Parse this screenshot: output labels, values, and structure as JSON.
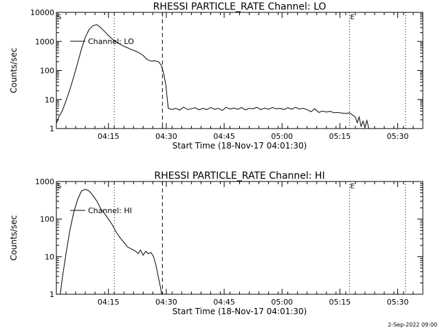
{
  "footer": {
    "timestamp": "2-Sep-2022 09:00"
  },
  "chart_data": [
    {
      "type": "line",
      "title": "RHESSI PARTICLE_RATE Channel: LO",
      "xlabel": "Start Time (18-Nov-17 04:01:30)",
      "ylabel": "Counts/sec",
      "yscale": "log",
      "xlim_min": [
        0,
        95
      ],
      "ylim": [
        1,
        10000
      ],
      "x_tick_min": [
        13.5,
        28.5,
        43.5,
        58.5,
        73.5,
        88.5
      ],
      "x_tick_labels": [
        "04:15",
        "04:30",
        "04:45",
        "05:00",
        "05:15",
        "05:30"
      ],
      "y_tick_values": [
        1,
        10,
        100,
        1000,
        10000
      ],
      "y_tick_labels": [
        "1",
        "10",
        "100",
        "1000",
        "10000"
      ],
      "legend": {
        "position": "top-left",
        "entries": [
          "Channel: LO"
        ]
      },
      "markers": [
        {
          "label": "S",
          "x_min": 0,
          "style": "none"
        },
        {
          "label": "",
          "x_min": 15.0,
          "style": "dotted"
        },
        {
          "label": "",
          "x_min": 27.5,
          "style": "dashed"
        },
        {
          "label": "E",
          "x_min": 76.0,
          "style": "dotted"
        },
        {
          "label": "",
          "x_min": 90.5,
          "style": "dotted"
        }
      ],
      "series": [
        {
          "name": "Channel: LO",
          "x": [
            0,
            0.6,
            1.5,
            2.5,
            3.5,
            4.5,
            5.5,
            6.5,
            7.5,
            8.5,
            9.5,
            10.5,
            11.5,
            12.5,
            13.5,
            14.5,
            15.5,
            16.5,
            17.5,
            18.5,
            19.5,
            20.5,
            21.5,
            22.5,
            23.5,
            24.5,
            25.5,
            26.5,
            27.2,
            27.6,
            28.0,
            28.4,
            29,
            30,
            31,
            32,
            33,
            34,
            35,
            36,
            37,
            38,
            39,
            40,
            41,
            42,
            43,
            44,
            45,
            46,
            47,
            48,
            49,
            50,
            51,
            52,
            53,
            54,
            55,
            56,
            57,
            58,
            59,
            60,
            61,
            62,
            63,
            64,
            65,
            66,
            67,
            68,
            69,
            70,
            71,
            72,
            73,
            74,
            75,
            76,
            77,
            77.5,
            78,
            78.5,
            79,
            79.5,
            80,
            80.5,
            81,
            81.5
          ],
          "values": [
            1.5,
            2.5,
            4,
            9,
            22,
            60,
            180,
            550,
            1400,
            2600,
            3500,
            3800,
            3000,
            2200,
            1600,
            1200,
            950,
            800,
            680,
            600,
            520,
            470,
            400,
            330,
            240,
            210,
            215,
            200,
            150,
            100,
            60,
            30,
            5,
            4.5,
            5,
            4.3,
            5.5,
            4.5,
            4.8,
            5.2,
            4.4,
            5,
            4.5,
            5.3,
            4.6,
            5,
            4.2,
            5.4,
            4.7,
            5.1,
            4.6,
            5.3,
            4.4,
            5,
            4.8,
            5.4,
            4.5,
            5.1,
            4.6,
            5.3,
            4.8,
            5,
            4.5,
            5.2,
            4.6,
            5.4,
            4.7,
            5,
            4.5,
            3.8,
            4.8,
            3.6,
            4,
            3.7,
            3.9,
            3.5,
            3.6,
            3.4,
            3.3,
            3.5,
            2.8,
            2.5,
            1.6,
            2.5,
            1.2,
            1.8,
            1.1,
            1.9,
            1.0,
            1.0
          ]
        }
      ]
    },
    {
      "type": "line",
      "title": "RHESSI PARTICLE_RATE Channel: HI",
      "xlabel": "Start Time (18-Nov-17 04:01:30)",
      "ylabel": "Counts/sec",
      "yscale": "log",
      "xlim_min": [
        0,
        95
      ],
      "ylim": [
        1,
        1000
      ],
      "x_tick_min": [
        13.5,
        28.5,
        43.5,
        58.5,
        73.5,
        88.5
      ],
      "x_tick_labels": [
        "04:15",
        "04:30",
        "04:45",
        "05:00",
        "05:15",
        "05:30"
      ],
      "y_tick_values": [
        1,
        10,
        100,
        1000
      ],
      "y_tick_labels": [
        "1",
        "10",
        "100",
        "1000"
      ],
      "legend": {
        "position": "top-left",
        "entries": [
          "Channel: HI"
        ]
      },
      "markers": [
        {
          "label": "S",
          "x_min": 0,
          "style": "none"
        },
        {
          "label": "",
          "x_min": 15.0,
          "style": "dotted"
        },
        {
          "label": "",
          "x_min": 27.5,
          "style": "dashed"
        },
        {
          "label": "E",
          "x_min": 76.0,
          "style": "dotted"
        },
        {
          "label": "",
          "x_min": 90.5,
          "style": "dotted"
        }
      ],
      "series": [
        {
          "name": "Channel: HI",
          "x": [
            1.0,
            1.5,
            2.5,
            3.5,
            4.5,
            5.5,
            6.5,
            7.5,
            8.5,
            9.5,
            10.5,
            11.5,
            12.5,
            13.5,
            14.5,
            15.5,
            16.5,
            17.5,
            18.5,
            19.5,
            20.5,
            21.2,
            21.8,
            22.5,
            23.2,
            23.8,
            24.5,
            25.2,
            25.8,
            26.4,
            27.0,
            27.3
          ],
          "values": [
            1.0,
            2.5,
            12,
            50,
            150,
            330,
            560,
            620,
            560,
            420,
            300,
            190,
            140,
            100,
            70,
            45,
            32,
            24,
            18,
            16,
            14,
            12,
            15,
            11,
            14,
            12,
            13,
            10,
            6,
            3,
            1.5,
            1.0
          ]
        }
      ]
    }
  ]
}
